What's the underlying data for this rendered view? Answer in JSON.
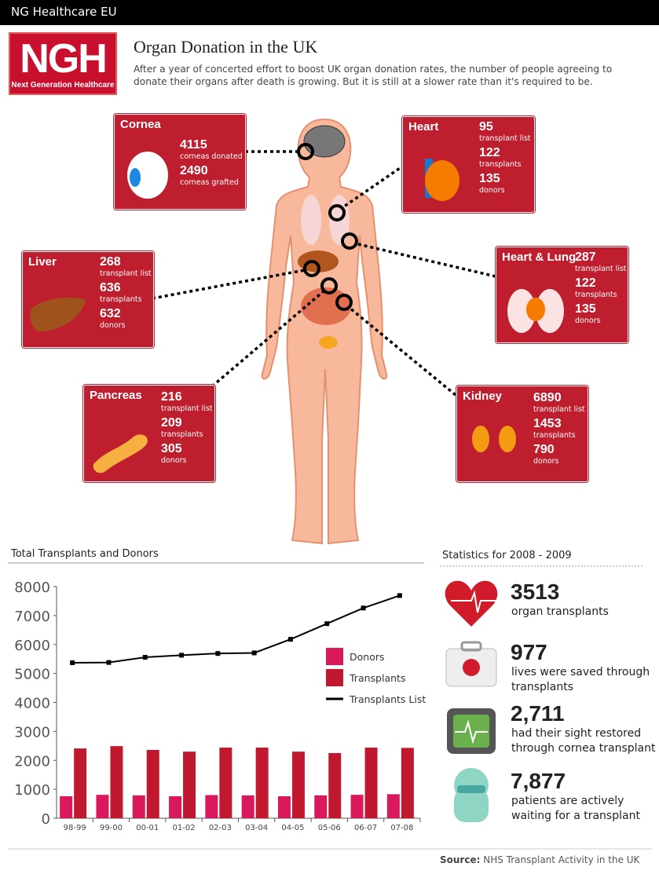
{
  "header": {
    "site": "NG Healthcare EU",
    "logo": "NGH",
    "logo_tagline": "Next Generation Healthcare",
    "title": "Organ Donation in the UK",
    "intro": "After a year of concerted effort to boost UK organ donation rates, the number of people agreeing to donate their organs after death is growing. But it is still at a slower rate than it's required to be."
  },
  "organs": [
    {
      "name": "Cornea",
      "stats": [
        {
          "value": 4115,
          "label": "corneas donated"
        },
        {
          "value": 2490,
          "label": "corneas grafted"
        }
      ]
    },
    {
      "name": "Heart",
      "stats": [
        {
          "value": 95,
          "label": "transplant list"
        },
        {
          "value": 122,
          "label": "transplants"
        },
        {
          "value": 135,
          "label": "donors"
        }
      ]
    },
    {
      "name": "Heart & Lung",
      "stats": [
        {
          "value": 287,
          "label": "transplant list"
        },
        {
          "value": 122,
          "label": "transplants"
        },
        {
          "value": 135,
          "label": "donors"
        }
      ]
    },
    {
      "name": "Liver",
      "stats": [
        {
          "value": 268,
          "label": "transplant list"
        },
        {
          "value": 636,
          "label": "transplants"
        },
        {
          "value": 632,
          "label": "donors"
        }
      ]
    },
    {
      "name": "Pancreas",
      "stats": [
        {
          "value": 216,
          "label": "transplant list"
        },
        {
          "value": 209,
          "label": "transplants"
        },
        {
          "value": 305,
          "label": "donors"
        }
      ]
    },
    {
      "name": "Kidney",
      "stats": [
        {
          "value": 6890,
          "label": "transplant list"
        },
        {
          "value": 1453,
          "label": "transplants"
        },
        {
          "value": 790,
          "label": "donors"
        }
      ]
    }
  ],
  "chart_data": {
    "type": "bar",
    "title": "Total Transplants and Donors",
    "categories": [
      "98-99",
      "99-00",
      "00-01",
      "01-02",
      "02-03",
      "03-04",
      "04-05",
      "05-06",
      "06-07",
      "07-08"
    ],
    "series": [
      {
        "name": "Donors",
        "type": "bar",
        "color": "#d9195b",
        "values": [
          760,
          810,
          790,
          760,
          800,
          790,
          760,
          790,
          810,
          830
        ]
      },
      {
        "name": "Transplants",
        "type": "bar",
        "color": "#c0192f",
        "values": [
          2410,
          2490,
          2360,
          2300,
          2440,
          2440,
          2300,
          2250,
          2440,
          2430
        ]
      },
      {
        "name": "Transplants List",
        "type": "line",
        "color": "#000000",
        "values": [
          5370,
          5380,
          5560,
          5630,
          5690,
          5710,
          6180,
          6720,
          7260,
          7690
        ]
      }
    ],
    "ylim": [
      0,
      8000
    ],
    "yticks": [
      0,
      1000,
      2000,
      3000,
      4000,
      5000,
      6000,
      7000,
      8000
    ]
  },
  "statistics": {
    "title": "Statistics for 2008 - 2009",
    "items": [
      {
        "value": "3513",
        "label": "organ transplants"
      },
      {
        "value": "977",
        "label": "lives were saved through transplants"
      },
      {
        "value": "2,711",
        "label": "had their sight restored through cornea transplant"
      },
      {
        "value": "7,877",
        "label": "patients are actively waiting for a transplant"
      }
    ]
  },
  "source": {
    "label": "Source:",
    "text": "NHS Transplant Activity in the UK"
  }
}
